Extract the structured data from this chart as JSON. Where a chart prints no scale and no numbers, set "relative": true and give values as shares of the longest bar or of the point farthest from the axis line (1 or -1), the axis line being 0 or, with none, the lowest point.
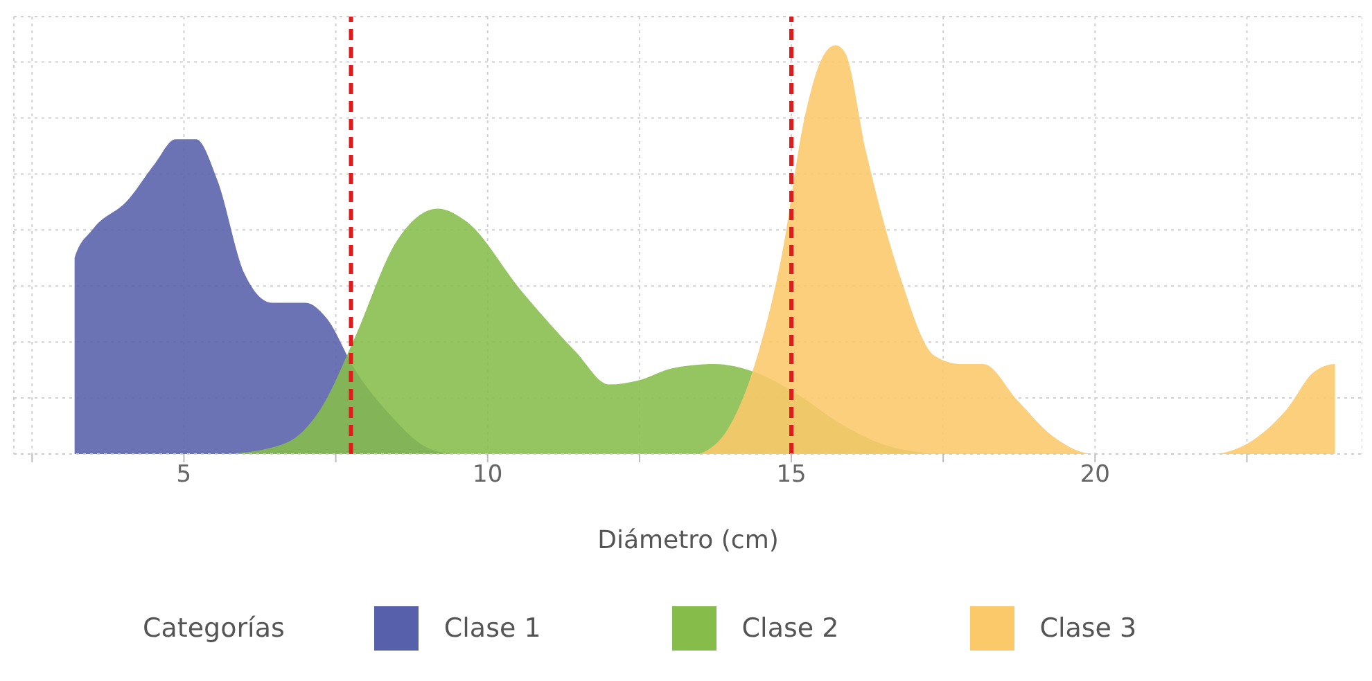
{
  "chart_data": {
    "type": "area",
    "relative": true,
    "xlabel": "Diámetro (cm)",
    "legend_title": "Categorías",
    "legend": "bottom",
    "grid": true,
    "xlim": [
      2.2,
      24.4
    ],
    "xticks": [
      {
        "value": 2.5,
        "label": null
      },
      5,
      {
        "value": 7.5,
        "label": null
      },
      10,
      {
        "value": 12.5,
        "label": null
      },
      15,
      {
        "value": 17.5,
        "label": null
      },
      20,
      {
        "value": 22.5,
        "label": null
      }
    ],
    "ref_lines": [
      {
        "axis": "x",
        "value": 7.75,
        "color": "#e31a1c",
        "line_style": "dashed"
      },
      {
        "axis": "x",
        "value": 15,
        "color": "#e31a1c",
        "line_style": "dashed"
      }
    ],
    "series": [
      {
        "name": "Clase 1",
        "color": "#5660ab",
        "x": [
          3.2,
          3.2,
          3.5,
          4.07,
          4.52,
          4.86,
          5.2,
          5.55,
          6.0,
          6.45,
          7.0,
          7.36,
          7.8,
          8.4,
          8.95,
          9.4
        ],
        "values": [
          0,
          0.48,
          0.55,
          0.62,
          0.71,
          0.77,
          0.77,
          0.67,
          0.44,
          0.37,
          0.37,
          0.33,
          0.21,
          0.095,
          0.02,
          0
        ]
      },
      {
        "name": "Clase 2",
        "color": "#86bd4a",
        "x": [
          5.77,
          6.68,
          7.25,
          7.8,
          8.5,
          9.18,
          9.64,
          10.55,
          11.45,
          12.0,
          12.48,
          13.05,
          13.73,
          14.4,
          15.1,
          15.77,
          16.45,
          17.36
        ],
        "values": [
          0,
          0.027,
          0.11,
          0.28,
          0.52,
          0.6,
          0.57,
          0.4,
          0.25,
          0.17,
          0.18,
          0.21,
          0.22,
          0.2,
          0.146,
          0.078,
          0.027,
          0
        ]
      },
      {
        "name": "Clase 3",
        "color": "#fbc86a",
        "x": [
          13.5,
          13.95,
          14.4,
          14.86,
          15.2,
          15.55,
          15.73,
          15.89,
          16.23,
          16.8,
          17.36,
          17.8,
          18.16,
          18.73,
          19.3,
          20.0,
          21.9,
          22.6,
          23.16,
          23.6,
          23.95,
          23.95
        ],
        "values": [
          0,
          0.06,
          0.22,
          0.5,
          0.81,
          0.98,
          1,
          0.98,
          0.74,
          0.43,
          0.24,
          0.22,
          0.22,
          0.13,
          0.044,
          0,
          0,
          0.034,
          0.11,
          0.2,
          0.22,
          0
        ]
      }
    ]
  }
}
